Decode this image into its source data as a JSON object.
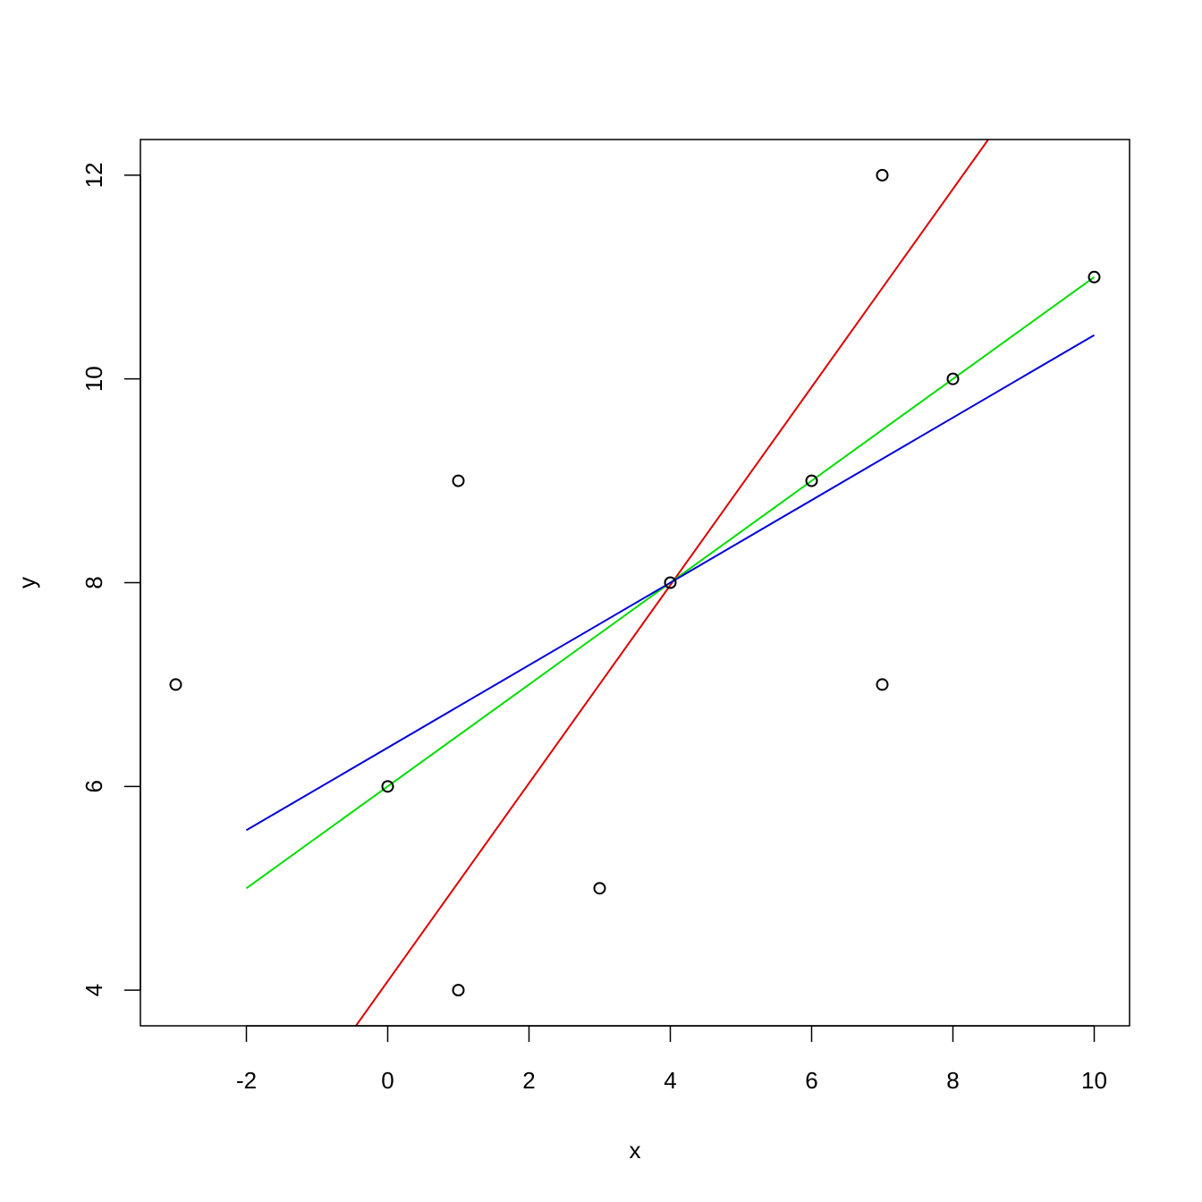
{
  "chart_data": {
    "type": "scatter",
    "title": "",
    "xlabel": "x",
    "ylabel": "y",
    "xlim": [
      -3.5,
      10.5
    ],
    "ylim": [
      3.65,
      12.35
    ],
    "x_ticks": [
      -2,
      0,
      2,
      4,
      6,
      8,
      10
    ],
    "y_ticks": [
      4,
      6,
      8,
      10,
      12
    ],
    "grid": false,
    "legend": "none",
    "points": [
      {
        "x": -3,
        "y": 7
      },
      {
        "x": 0,
        "y": 6
      },
      {
        "x": 1,
        "y": 9
      },
      {
        "x": 1,
        "y": 4
      },
      {
        "x": 3,
        "y": 5
      },
      {
        "x": 4,
        "y": 8
      },
      {
        "x": 6,
        "y": 9
      },
      {
        "x": 7,
        "y": 12
      },
      {
        "x": 7,
        "y": 7
      },
      {
        "x": 8,
        "y": 10
      },
      {
        "x": 10,
        "y": 11
      }
    ],
    "lines": [
      {
        "color": "#dd0000",
        "x": [
          -0.45,
          8.5
        ],
        "y": [
          3.65,
          12.35
        ]
      },
      {
        "color": "#00dd00",
        "x": [
          -2,
          10
        ],
        "y": [
          5,
          11
        ]
      },
      {
        "color": "#0000dd",
        "x": [
          -2,
          10
        ],
        "y": [
          5.57,
          10.43
        ]
      }
    ]
  }
}
